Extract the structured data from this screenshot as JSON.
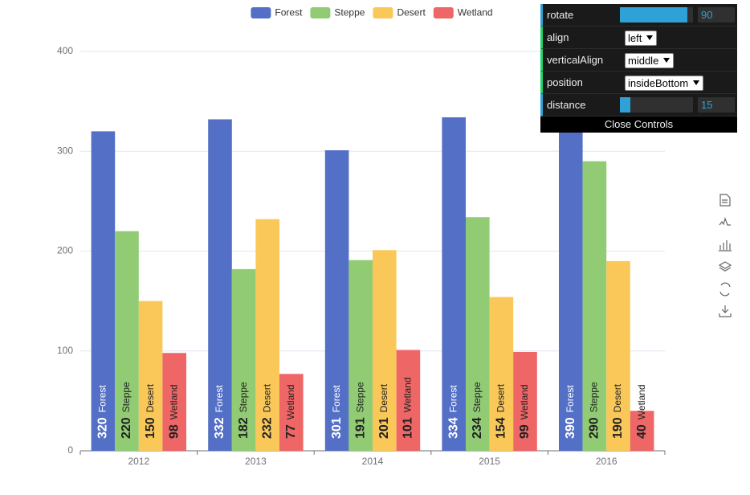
{
  "chart_data": {
    "type": "bar",
    "categories": [
      "2012",
      "2013",
      "2014",
      "2015",
      "2016"
    ],
    "series": [
      {
        "name": "Forest",
        "color": "#5470c6",
        "label_color": "#ffffff",
        "values": [
          320,
          332,
          301,
          334,
          390
        ]
      },
      {
        "name": "Steppe",
        "color": "#91cc75",
        "label_color": "#222222",
        "values": [
          220,
          182,
          191,
          234,
          290
        ]
      },
      {
        "name": "Desert",
        "color": "#fac858",
        "label_color": "#222222",
        "values": [
          150,
          232,
          201,
          154,
          190
        ]
      },
      {
        "name": "Wetland",
        "color": "#ee6666",
        "label_color": "#222222",
        "values": [
          98,
          77,
          101,
          99,
          40
        ]
      }
    ],
    "ylim": [
      0,
      400
    ],
    "yticks": [
      0,
      100,
      200,
      300,
      400
    ],
    "grid": true,
    "legend": "top"
  },
  "controls": {
    "rows": [
      {
        "label": "rotate",
        "value": "90"
      },
      {
        "label": "align",
        "value": "left"
      },
      {
        "label": "verticalAlign",
        "value": "middle"
      },
      {
        "label": "position",
        "value": "insideBottom"
      },
      {
        "label": "distance",
        "value": "15"
      }
    ],
    "close": "Close Controls"
  }
}
